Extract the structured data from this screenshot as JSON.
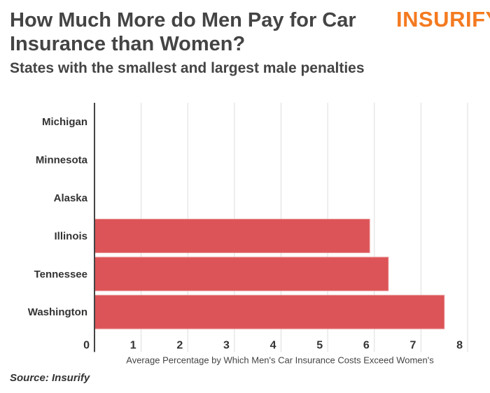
{
  "header": {
    "title": "How Much More do Men Pay for Car Insurance than Women?",
    "subtitle": "States with the smallest and largest male penalties",
    "logo": "INSURIFY"
  },
  "footer": {
    "source": "Source: Insurify"
  },
  "colors": {
    "bar": "#dc5457",
    "logo": "#f47a20"
  },
  "chart_data": {
    "type": "bar",
    "orientation": "horizontal",
    "title": "How Much More do Men Pay for Car Insurance than Women?",
    "subtitle": "States with the smallest and largest male penalties",
    "categories": [
      "Michigan",
      "Minnesota",
      "Alaska",
      "Illinois",
      "Tennessee",
      "Washington"
    ],
    "values": [
      0,
      0,
      0,
      5.9,
      6.3,
      7.5
    ],
    "xlabel": "Average Percentage by Which Men's Car Insurance Costs Exceed Women's",
    "ylabel": "",
    "xlim": [
      0,
      8
    ],
    "xticks": [
      "0",
      "1",
      "2",
      "3",
      "4",
      "5",
      "6",
      "7",
      "8"
    ],
    "grid": true
  }
}
